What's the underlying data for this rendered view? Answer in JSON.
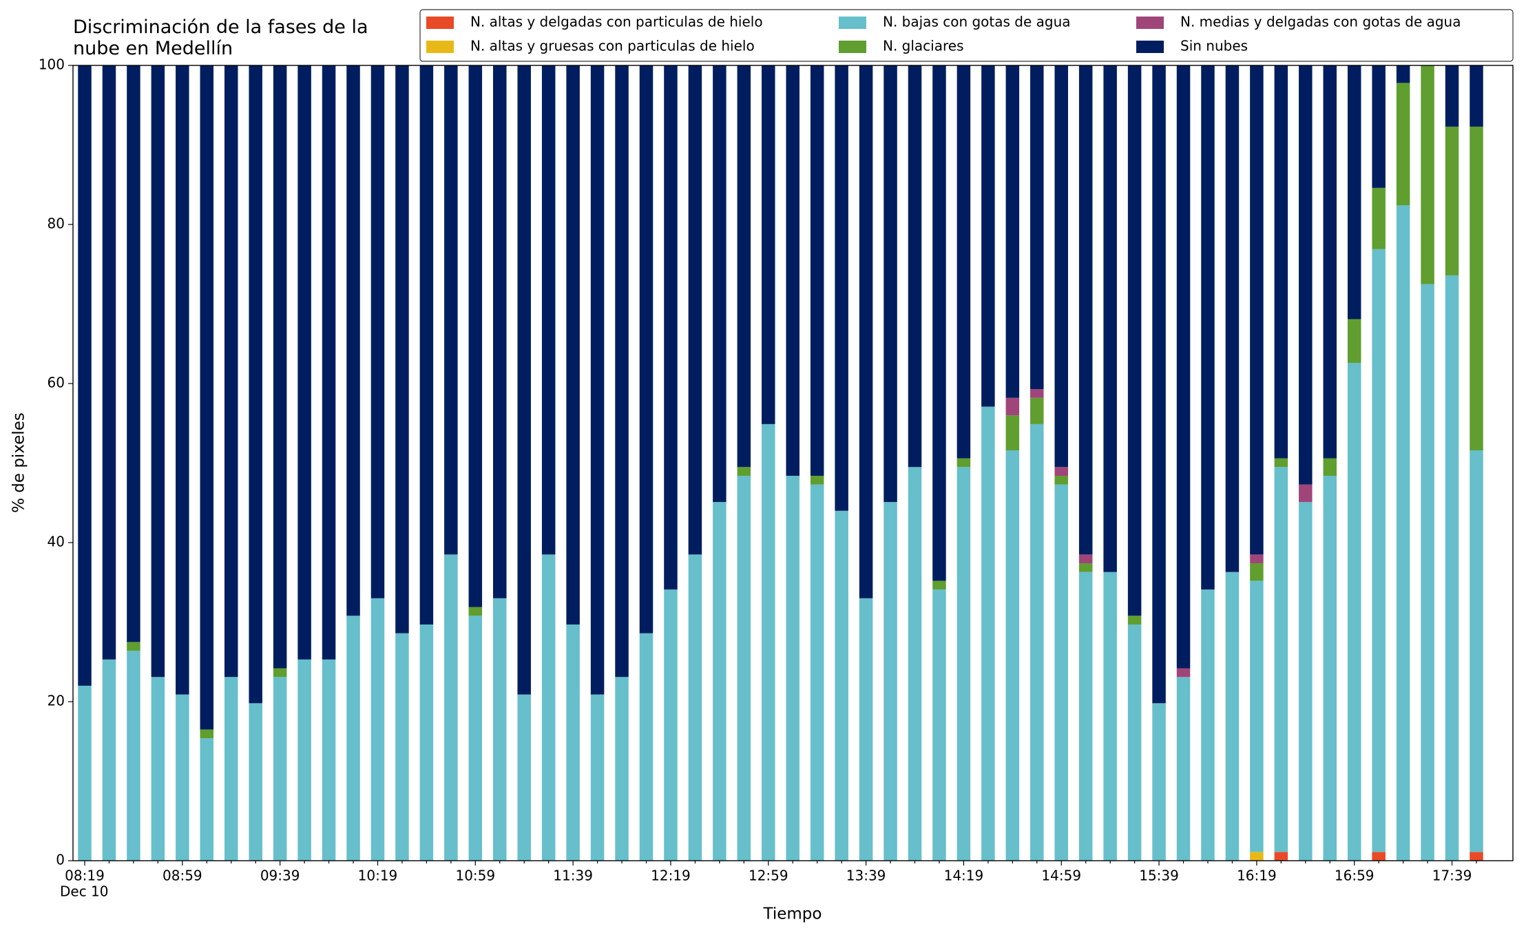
{
  "chart_data": {
    "type": "stacked-bar",
    "title": "Discriminación de la fases de la\nnube en Medellín",
    "x_label": "Tiempo",
    "y_label": "% de pixeles",
    "x_date_label": "Dec 10",
    "categories": [
      "08:19",
      null,
      null,
      null,
      "08:59",
      null,
      null,
      null,
      "09:39",
      null,
      null,
      null,
      "10:19",
      null,
      null,
      null,
      "10:59",
      null,
      null,
      null,
      "11:39",
      null,
      null,
      null,
      "12:19",
      null,
      null,
      null,
      "12:59",
      null,
      null,
      null,
      "13:39",
      null,
      null,
      null,
      "14:19",
      null,
      null,
      null,
      "14:59",
      null,
      null,
      null,
      "15:39",
      null,
      null,
      null,
      "16:19",
      null,
      null,
      null,
      "16:59",
      null,
      null,
      null,
      "17:39",
      null
    ],
    "ylim": [
      0,
      100
    ],
    "yticks": [
      0,
      20,
      40,
      60,
      80,
      100
    ],
    "legend": "top-right",
    "series": [
      {
        "name": "N. altas y delgadas con particulas de hielo",
        "color": "#e84a27",
        "values": [
          0,
          0,
          0,
          0,
          0,
          0,
          0,
          0,
          0,
          0,
          0,
          0,
          0,
          0,
          0,
          0,
          0,
          0,
          0,
          0,
          0,
          0,
          0,
          0,
          0,
          0,
          0,
          0,
          0,
          0,
          0,
          0,
          0,
          0,
          0,
          0,
          0,
          0,
          0,
          0,
          0,
          0,
          0,
          0,
          0,
          0,
          0,
          0,
          0,
          1.1,
          0,
          0,
          0,
          1.1,
          0,
          0,
          0,
          1.1
        ]
      },
      {
        "name": "N. altas y gruesas con particulas de hielo",
        "color": "#e8b818",
        "values": [
          0,
          0,
          0,
          0,
          0,
          0,
          0,
          0,
          0,
          0,
          0,
          0,
          0,
          0,
          0,
          0,
          0,
          0,
          0,
          0,
          0,
          0,
          0,
          0,
          0,
          0,
          0,
          0,
          0,
          0,
          0,
          0,
          0,
          0,
          0,
          0,
          0,
          0,
          0,
          0,
          0,
          0,
          0,
          0,
          0,
          0,
          0,
          0,
          1.1,
          0,
          0,
          0,
          0,
          0,
          0,
          0,
          0,
          0
        ]
      },
      {
        "name": "N. bajas con gotas de agua",
        "color": "#66bfcb",
        "values": [
          22,
          25.3,
          26.4,
          23.1,
          20.9,
          15.4,
          23.1,
          19.8,
          23.1,
          25.3,
          25.3,
          30.8,
          33,
          28.6,
          29.7,
          38.5,
          30.8,
          33,
          20.9,
          38.5,
          29.7,
          20.9,
          23.1,
          28.6,
          34.1,
          38.5,
          45.1,
          48.4,
          54.9,
          48.4,
          47.3,
          44,
          33,
          45.1,
          49.5,
          34.1,
          49.5,
          57.1,
          51.6,
          54.9,
          47.3,
          36.3,
          36.3,
          29.7,
          19.8,
          23.1,
          34.1,
          36.3,
          34.1,
          48.4,
          45.1,
          48.4,
          62.6,
          75.8,
          82.4,
          72.5,
          73.6,
          50.5
        ]
      },
      {
        "name": "N. glaciares",
        "color": "#5f9e2f",
        "values": [
          0,
          0,
          1.1,
          0,
          0,
          1.1,
          0,
          0,
          1.1,
          0,
          0,
          0,
          0,
          0,
          0,
          0,
          1.1,
          0,
          0,
          0,
          0,
          0,
          0,
          0,
          0,
          0,
          0,
          1.1,
          0,
          0,
          1.1,
          0,
          0,
          0,
          0,
          1.1,
          1.1,
          0,
          4.4,
          3.3,
          1.1,
          1.1,
          0,
          1.1,
          0,
          0,
          0,
          0,
          2.2,
          1.1,
          0,
          2.2,
          5.5,
          7.7,
          15.4,
          27.5,
          18.7,
          40.7
        ]
      },
      {
        "name": "N. medias y delgadas con gotas de agua",
        "color": "#a0457a",
        "values": [
          0,
          0,
          0,
          0,
          0,
          0,
          0,
          0,
          0,
          0,
          0,
          0,
          0,
          0,
          0,
          0,
          0,
          0,
          0,
          0,
          0,
          0,
          0,
          0,
          0,
          0,
          0,
          0,
          0,
          0,
          0,
          0,
          0,
          0,
          0,
          0,
          0,
          0,
          2.2,
          1.1,
          1.1,
          1.1,
          0,
          0,
          0,
          1.1,
          0,
          0,
          1.1,
          0,
          2.2,
          0,
          0,
          0,
          0,
          0,
          0,
          0
        ]
      },
      {
        "name": "Sin nubes",
        "color": "#001e5f",
        "values": [
          78,
          74.7,
          72.5,
          76.9,
          79.1,
          83.5,
          76.9,
          80.2,
          75.8,
          74.7,
          74.7,
          69.2,
          67,
          71.4,
          70.3,
          61.5,
          68.1,
          67,
          79.1,
          61.5,
          70.3,
          79.1,
          76.9,
          71.4,
          65.9,
          61.5,
          54.9,
          50.5,
          45.1,
          51.6,
          51.6,
          56,
          67,
          54.9,
          50.5,
          64.8,
          49.4,
          42.9,
          41.8,
          40.7,
          50.5,
          61.5,
          63.7,
          69.2,
          80.2,
          75.8,
          65.9,
          63.7,
          61.5,
          49.4,
          52.7,
          49.4,
          31.9,
          15.4,
          2.2,
          0,
          7.7,
          7.7
        ]
      }
    ]
  }
}
